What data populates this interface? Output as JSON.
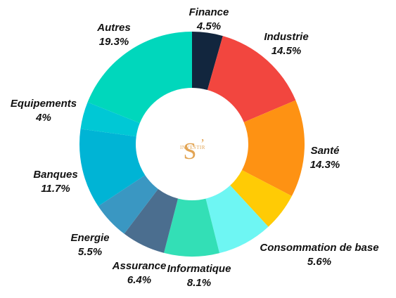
{
  "chart_data": {
    "type": "pie",
    "title": "",
    "slices": [
      {
        "label": "Finance",
        "value": 4.5,
        "value_text": "4.5%",
        "color": "#12263e"
      },
      {
        "label": "Industrie",
        "value": 14.5,
        "value_text": "14.5%",
        "color": "#f2463f"
      },
      {
        "label": "Santé",
        "value": 14.3,
        "value_text": "14.3%",
        "color": "#fe9213"
      },
      {
        "label": "Consommation de base",
        "value": 5.6,
        "value_text": "5.6%",
        "color": "#ffcb05"
      },
      {
        "label": "Informatique",
        "value": 8.1,
        "value_text": "8.1%",
        "color": "#6ef6f3"
      },
      {
        "label": "Informatique",
        "value": 8.1,
        "value_text": "8.1%",
        "color": "#33dfb6"
      },
      {
        "label": "Assurance",
        "value": 6.4,
        "value_text": "6.4%",
        "color": "#4b6e8f"
      },
      {
        "label": "Energie",
        "value": 5.5,
        "value_text": "5.5%",
        "color": "#3a97c2"
      },
      {
        "label": "Banques",
        "value": 11.7,
        "value_text": "11.7%",
        "color": "#00b4d5"
      },
      {
        "label": "Equipements",
        "value": 4.0,
        "value_text": "4%",
        "color": "#00c8d5"
      },
      {
        "label": "Autres",
        "value": 19.3,
        "value_text": "19.3%",
        "color": "#00d7bc"
      }
    ],
    "visible_labels": [
      {
        "slice": 0,
        "name": "Finance",
        "pct": "4.5%"
      },
      {
        "slice": 1,
        "name": "Industrie",
        "pct": "14.5%"
      },
      {
        "slice": 2,
        "name": "Santé",
        "pct": "14.3%"
      },
      {
        "slice": 3,
        "name": "Consommation de base",
        "pct": "5.6%"
      },
      {
        "slice": 5,
        "name": "Informatique",
        "pct": "8.1%"
      },
      {
        "slice": 6,
        "name": "Assurance",
        "pct": "6.4%"
      },
      {
        "slice": 7,
        "name": "Energie",
        "pct": "5.5%"
      },
      {
        "slice": 8,
        "name": "Banques",
        "pct": "11.7%"
      },
      {
        "slice": 9,
        "name": "Equipements",
        "pct": "4%"
      },
      {
        "slice": 10,
        "name": "Autres",
        "pct": "19.3%"
      }
    ],
    "donut": true,
    "legend": "none"
  },
  "logo": {
    "initial": "S",
    "apostrophe": "’",
    "text": "INVESTIR"
  }
}
